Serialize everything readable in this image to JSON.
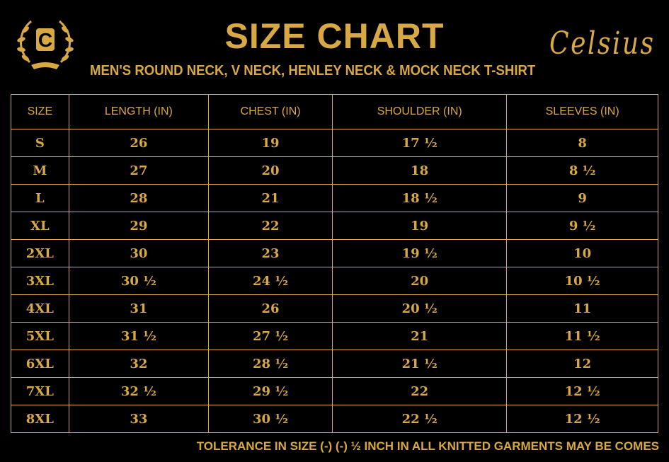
{
  "brand": {
    "logo_letter": "C",
    "name": "Celsius"
  },
  "title": "SIZE CHART",
  "subtitle": "MEN'S ROUND NECK, V NECK, HENLEY NECK & MOCK NECK T-SHIRT",
  "colors": {
    "gold": "#d8a845",
    "background": "#000000"
  },
  "table": {
    "headers": [
      "SIZE",
      "LENGTH (IN)",
      "CHEST (IN)",
      "SHOULDER (IN)",
      "SLEEVES (IN)"
    ],
    "rows": [
      [
        "S",
        "26",
        "19",
        "17 ½",
        "8"
      ],
      [
        "M",
        "27",
        "20",
        "18",
        "8 ½"
      ],
      [
        "L",
        "28",
        "21",
        "18 ½",
        "9"
      ],
      [
        "XL",
        "29",
        "22",
        "19",
        "9 ½"
      ],
      [
        "2XL",
        "30",
        "23",
        "19 ½",
        "10"
      ],
      [
        "3XL",
        "30 ½",
        "24 ½",
        "20",
        "10 ½"
      ],
      [
        "4XL",
        "31",
        "26",
        "20 ½",
        "11"
      ],
      [
        "5XL",
        "31 ½",
        "27 ½",
        "21",
        "11 ½"
      ],
      [
        "6XL",
        "32",
        "28 ½",
        "21 ½",
        "12"
      ],
      [
        "7XL",
        "32 ½",
        "29 ½",
        "22",
        "12 ½"
      ],
      [
        "8XL",
        "33",
        "30 ½",
        "22 ½",
        "12 ½"
      ]
    ]
  },
  "footer": "TOLERANCE IN SIZE (-) (-) ½ INCH IN ALL KNITTED GARMENTS MAY BE COMES"
}
